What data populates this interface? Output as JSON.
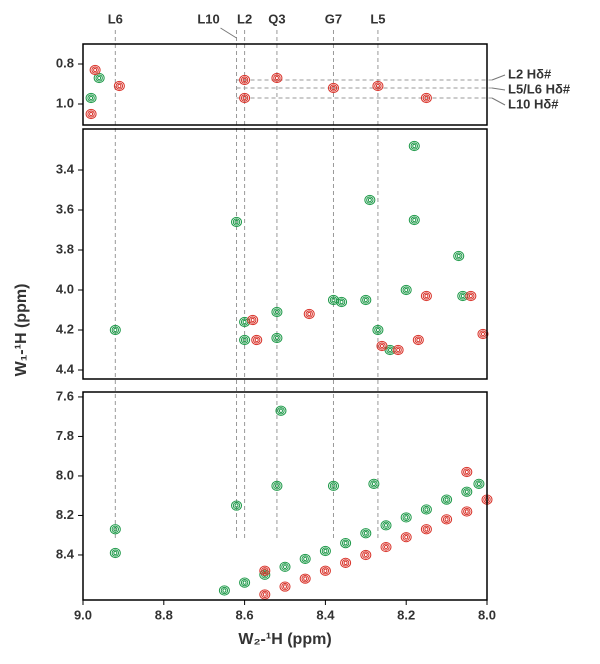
{
  "chart_data": [
    {
      "type": "scatter",
      "xlim": [
        9.0,
        8.0
      ],
      "ylim": [
        0.7,
        1.105
      ],
      "yticks": [
        0.8,
        {
          "value": 1.0,
          "label": "1.0"
        }
      ],
      "assignments": [
        {
          "label": "L6",
          "x": 8.92
        },
        {
          "label": "L10",
          "x": 8.62
        },
        {
          "label": "L2",
          "x": 8.6
        },
        {
          "label": "Q3",
          "x": 8.52
        },
        {
          "label": "G7",
          "x": 8.38
        },
        {
          "label": "L5",
          "x": 8.27
        }
      ],
      "methyl_labels": [
        {
          "label": "L2 Hδ#",
          "y": 0.88
        },
        {
          "label": "L5/L6 Hδ#",
          "y": 0.92
        },
        {
          "label": "L10 Hδ#",
          "y": 0.97
        }
      ],
      "series": [
        {
          "color": "#1f9a4a",
          "x": [
            8.98,
            8.96
          ],
          "y": [
            0.97,
            0.87
          ]
        },
        {
          "color": "#d9342b",
          "x": [
            8.98,
            8.97,
            8.91,
            8.6,
            8.6,
            8.52,
            8.38,
            8.27,
            8.15
          ],
          "y": [
            1.05,
            0.83,
            0.91,
            0.88,
            0.97,
            0.87,
            0.92,
            0.91,
            0.97
          ]
        }
      ]
    },
    {
      "type": "scatter",
      "xlim": [
        9.0,
        8.0
      ],
      "ylim": [
        3.195,
        4.445
      ],
      "yticks": [
        3.4,
        3.6,
        3.8,
        {
          "value": 4.0,
          "label": "4.0"
        },
        4.2,
        4.4
      ],
      "ylabel": "W₁-¹H (ppm)",
      "series": [
        {
          "color": "#1f9a4a",
          "x": [
            8.92,
            8.62,
            8.6,
            8.6,
            8.52,
            8.52,
            8.38,
            8.36,
            8.3,
            8.29,
            8.27,
            8.24,
            8.2,
            8.18,
            8.18,
            8.07,
            8.06
          ],
          "y": [
            4.2,
            3.66,
            4.16,
            4.25,
            4.11,
            4.24,
            4.05,
            4.06,
            4.05,
            3.55,
            4.2,
            4.3,
            4.0,
            3.28,
            3.65,
            3.83,
            4.03
          ]
        },
        {
          "color": "#d9342b",
          "x": [
            8.58,
            8.57,
            8.44,
            8.26,
            8.22,
            8.17,
            8.15,
            8.04,
            8.01
          ],
          "y": [
            4.15,
            4.25,
            4.12,
            4.28,
            4.3,
            4.25,
            4.03,
            4.03,
            4.22
          ]
        }
      ]
    },
    {
      "type": "scatter",
      "xlim": [
        9.0,
        8.0
      ],
      "ylim": [
        7.575,
        8.628
      ],
      "yticks": [
        7.6,
        7.8,
        {
          "value": 8.0,
          "label": "8.0"
        },
        8.2,
        8.4
      ],
      "xticks": [
        {
          "value": 9.0,
          "label": "9.0"
        },
        8.8,
        8.6,
        8.4,
        8.2,
        {
          "value": 8.0,
          "label": "8.0"
        }
      ],
      "xlabel": "W₂-¹H (ppm)",
      "series": [
        {
          "color": "#1f9a4a",
          "x": [
            8.92,
            8.92,
            8.62,
            8.52,
            8.51,
            8.38,
            8.28,
            8.65,
            8.6,
            8.55,
            8.5,
            8.45,
            8.4,
            8.35,
            8.3,
            8.25,
            8.2,
            8.15,
            8.1,
            8.05,
            8.02
          ],
          "y": [
            8.27,
            8.39,
            8.15,
            8.05,
            7.67,
            8.05,
            8.04,
            8.58,
            8.54,
            8.5,
            8.46,
            8.42,
            8.38,
            8.34,
            8.29,
            8.25,
            8.21,
            8.17,
            8.12,
            8.08,
            8.04
          ]
        },
        {
          "color": "#d9342b",
          "x": [
            8.55,
            8.5,
            8.45,
            8.4,
            8.35,
            8.3,
            8.25,
            8.2,
            8.15,
            8.1,
            8.05,
            8.0,
            8.55,
            8.05
          ],
          "y": [
            8.6,
            8.56,
            8.52,
            8.48,
            8.44,
            8.4,
            8.36,
            8.31,
            8.27,
            8.22,
            8.18,
            8.12,
            8.48,
            7.98
          ]
        }
      ]
    }
  ]
}
